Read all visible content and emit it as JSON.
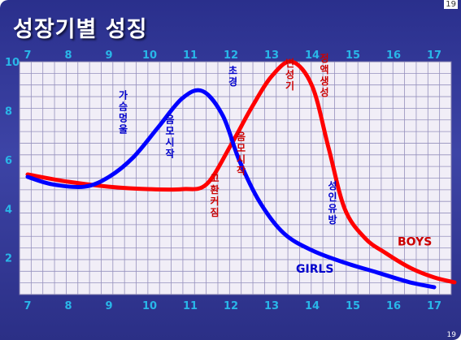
{
  "slide": {
    "title": "성장기별 성징",
    "page_number": "19"
  },
  "chart_data": {
    "type": "line",
    "title": "성장기별 성징",
    "xlabel": "",
    "ylabel": "",
    "xlim": [
      7,
      17.5
    ],
    "ylim": [
      0.5,
      10
    ],
    "x_ticks": [
      7,
      8,
      9,
      10,
      11,
      12,
      13,
      14,
      15,
      16,
      17
    ],
    "y_ticks": [
      2,
      4,
      6,
      8,
      10
    ],
    "grid": true,
    "series": [
      {
        "name": "GIRLS",
        "color": "#0000ff",
        "x": [
          7.0,
          7.6,
          8.4,
          9.0,
          9.6,
          10.2,
          10.8,
          11.3,
          11.8,
          12.2,
          12.7,
          13.3,
          14.0,
          14.8,
          15.6,
          16.4,
          17.0
        ],
        "y": [
          5.3,
          5.0,
          4.9,
          5.3,
          6.1,
          7.3,
          8.5,
          8.8,
          7.8,
          6.0,
          4.3,
          3.0,
          2.3,
          1.8,
          1.4,
          1.0,
          0.8
        ]
      },
      {
        "name": "BOYS",
        "color": "#ff0000",
        "x": [
          7.0,
          8.0,
          9.0,
          10.0,
          10.8,
          11.4,
          12.0,
          12.5,
          13.0,
          13.5,
          14.0,
          14.4,
          14.8,
          15.3,
          15.8,
          16.4,
          17.0,
          17.5
        ],
        "y": [
          5.4,
          5.1,
          4.9,
          4.8,
          4.8,
          5.0,
          6.6,
          8.1,
          9.4,
          10.0,
          9.0,
          6.5,
          4.0,
          2.8,
          2.2,
          1.6,
          1.2,
          1.0
        ]
      }
    ],
    "annotations": [
      {
        "text": "가슴멍울",
        "x": 9.35,
        "y": 8.5,
        "color": "#0000cc"
      },
      {
        "text": "음모시작",
        "x": 10.5,
        "y": 7.5,
        "color": "#0000cc"
      },
      {
        "text": "초경",
        "x": 12.05,
        "y": 9.5,
        "color": "#0000cc"
      },
      {
        "text": "성인유방",
        "x": 14.5,
        "y": 4.8,
        "color": "#0000cc"
      },
      {
        "text": "변성기",
        "x": 13.45,
        "y": 9.8,
        "color": "#cc0000"
      },
      {
        "text": "정액생성",
        "x": 14.3,
        "y": 10.0,
        "color": "#cc0000"
      },
      {
        "text": "음모시작",
        "x": 12.25,
        "y": 6.8,
        "color": "#cc0000"
      },
      {
        "text": "고환커짐",
        "x": 11.6,
        "y": 5.1,
        "color": "#cc0000"
      }
    ],
    "legend_labels": [
      {
        "text": "BOYS",
        "x": 16.1,
        "y": 2.5,
        "color": "#cc0000"
      },
      {
        "text": "GIRLS",
        "x": 13.6,
        "y": 1.4,
        "color": "#0000cc"
      }
    ]
  }
}
